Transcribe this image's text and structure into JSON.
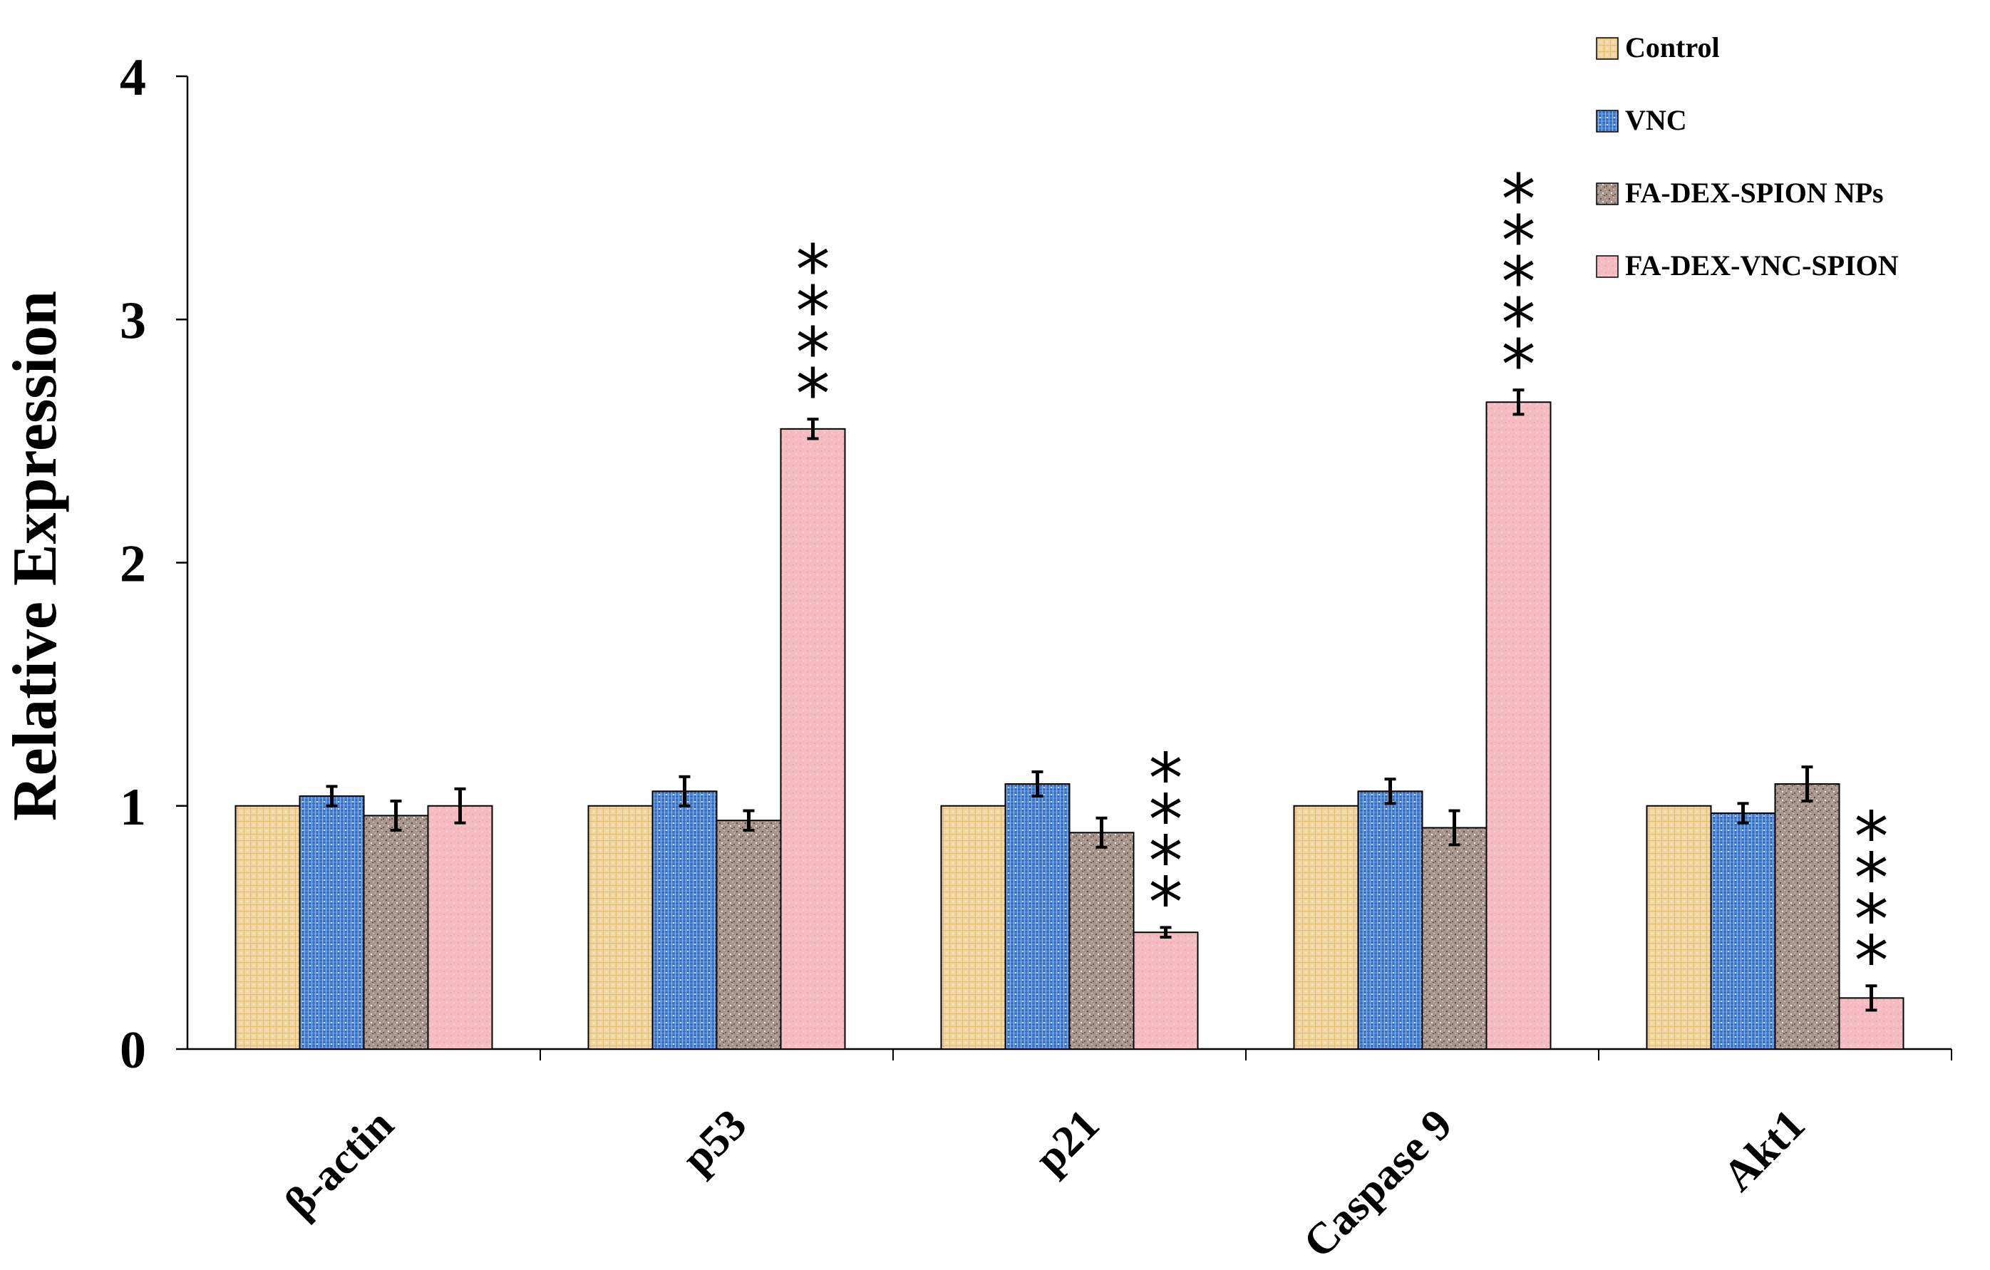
{
  "chart_data": {
    "type": "bar",
    "title": "",
    "xlabel": "",
    "ylabel": "Relative Expression",
    "ylim": [
      0,
      4
    ],
    "yticks": [
      0,
      1,
      2,
      3,
      4
    ],
    "ytick_labels": [
      "0",
      "1",
      "2",
      "3",
      "4"
    ],
    "grid": false,
    "legend_position": "top-right",
    "categories": [
      "β-actin",
      "p53",
      "p21",
      "Caspase 9",
      "Akt1"
    ],
    "series": [
      {
        "name": "Control",
        "color": "#f2d49a",
        "pattern": "light-grid",
        "values": [
          1.0,
          1.0,
          1.0,
          1.0,
          1.0
        ],
        "errors": [
          0,
          0,
          0,
          0,
          0
        ]
      },
      {
        "name": "VNC",
        "color": "#4f86d6",
        "pattern": "blue-weave",
        "values": [
          1.04,
          1.06,
          1.09,
          1.06,
          0.97
        ],
        "errors": [
          0.04,
          0.06,
          0.05,
          0.05,
          0.04
        ]
      },
      {
        "name": "FA-DEX-SPION NPs",
        "color": "#a8968c",
        "pattern": "speckled",
        "values": [
          0.96,
          0.94,
          0.89,
          0.91,
          1.09
        ],
        "errors": [
          0.06,
          0.04,
          0.06,
          0.07,
          0.07
        ]
      },
      {
        "name": "FA-DEX-VNC-SPION",
        "color": "#f5bcc0",
        "pattern": "pink-texture",
        "values": [
          1.0,
          2.55,
          0.48,
          2.66,
          0.21
        ],
        "errors": [
          0.07,
          0.04,
          0.02,
          0.05,
          0.05
        ]
      }
    ],
    "annotations": [
      {
        "category": "p53",
        "series": "FA-DEX-VNC-SPION",
        "text": "****"
      },
      {
        "category": "p21",
        "series": "FA-DEX-VNC-SPION",
        "text": "****"
      },
      {
        "category": "Caspase 9",
        "series": "FA-DEX-VNC-SPION",
        "text": "*****"
      },
      {
        "category": "Akt1",
        "series": "FA-DEX-VNC-SPION",
        "text": "****"
      }
    ]
  }
}
